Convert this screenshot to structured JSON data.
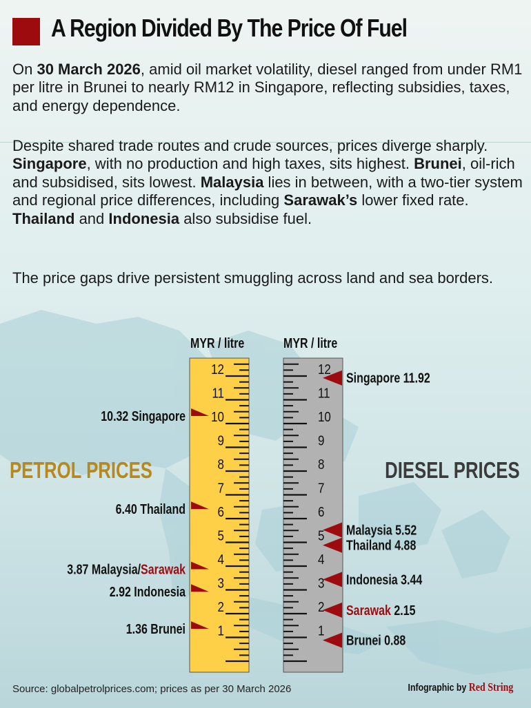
{
  "header": {
    "title": "A Region Divided By The Price Of Fuel",
    "p1": {
      "a": "On ",
      "b": "30 March 2026",
      "c": ", amid oil market volatility, diesel ranged from under RM1 per litre in Brunei to nearly RM12 in Singapore, reflecting subsidies, taxes, and energy dependence."
    },
    "p2": {
      "a": "Despite shared trade routes and crude sources, prices diverge sharply. ",
      "b": "Singapore",
      "c": ", with no production and high taxes, sits highest. ",
      "d": "Brunei",
      "e": ", oil-rich and subsidised, sits lowest. ",
      "f": "Malaysia",
      "g": " lies in between, with a two-tier system and regional price differences, including ",
      "h": "Sarawak’s",
      "i": " lower fixed rate. ",
      "j": "Thailand",
      "k": " and ",
      "l": "Indonesia",
      "m": " also subsidise fuel."
    },
    "p3": "The price gaps drive persistent smuggling across land and sea borders."
  },
  "chart_data": {
    "type": "bar",
    "title": "A Region Divided By The Price Of Fuel",
    "unit_label": "MYR / litre",
    "ylim": [
      0,
      12.5
    ],
    "ticks": [
      1,
      2,
      3,
      4,
      5,
      6,
      7,
      8,
      9,
      10,
      11,
      12
    ],
    "series": [
      {
        "name": "PETROL PRICES",
        "color": "#fdd048",
        "points": [
          {
            "label": "Singapore",
            "value": 10.32,
            "text": "10.32  Singapore"
          },
          {
            "label": "Thailand",
            "value": 6.4,
            "text": "6.40  Thailand"
          },
          {
            "label": "Malaysia/Sarawak",
            "value": 3.87,
            "text": "3.87  Malaysia/",
            "highlight": "Sarawak"
          },
          {
            "label": "Indonesia",
            "value": 2.92,
            "text": "2.92  Indonesia"
          },
          {
            "label": "Brunei",
            "value": 1.36,
            "text": "1.36  Brunei"
          }
        ]
      },
      {
        "name": "DIESEL PRICES",
        "color": "#b2b2b2",
        "points": [
          {
            "label": "Singapore",
            "value": 11.92,
            "text": "Singapore 11.92"
          },
          {
            "label": "Malaysia",
            "value": 5.52,
            "text": "Malaysia 5.52"
          },
          {
            "label": "Thailand",
            "value": 4.88,
            "text": "Thailand  4.88"
          },
          {
            "label": "Indonesia",
            "value": 3.44,
            "text": "Indonesia 3.44"
          },
          {
            "label": "Sarawak",
            "value": 2.15,
            "highlight": "Sarawak",
            "text": " 2.15"
          },
          {
            "label": "Brunei",
            "value": 0.88,
            "text": "Brunei  0.88"
          }
        ]
      }
    ]
  },
  "colors": {
    "accent_red": "#9e0b0f",
    "petrol_title": "#b5891f",
    "diesel_title": "#3b3b3b"
  },
  "footer": {
    "source": "Source: globalpetrolprices.com; prices as per 30 March 2026",
    "credit_prefix": "Infographic by ",
    "brand": "Red String"
  }
}
